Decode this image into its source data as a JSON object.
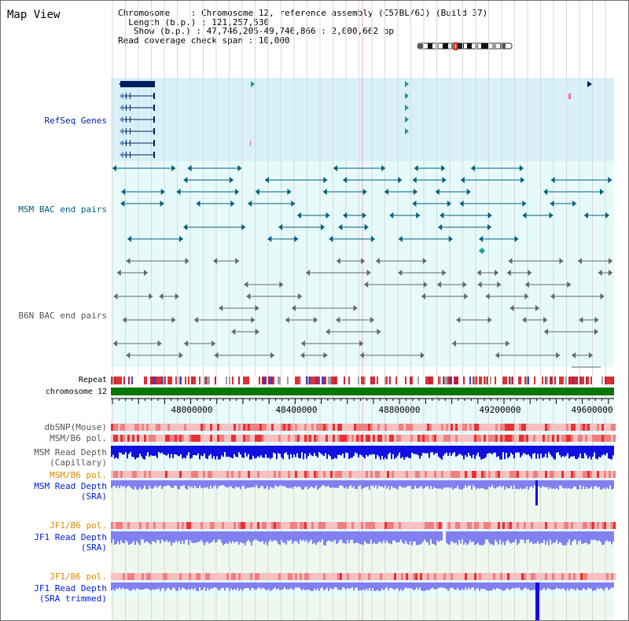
{
  "title": "Map View",
  "info": {
    "chromosome_key": "Chromosome",
    "chromosome_value": "Chromosome 12, reference assembly (C57BL/6J) (Build 37)",
    "length_key": "Length (b.p.)",
    "length_value": "121,257,530",
    "show_key": "Show (b.p.)",
    "show_value": "47,746,205-49,746,866 : 2,000,662 bp",
    "coverage_key": "Read coverage check span",
    "coverage_value": "10,000"
  },
  "tracks": {
    "refseq": "RefSeq Genes",
    "msm_bac": "MSM BAC end pairs",
    "b6n_bac": "B6N BAC end pairs",
    "repeat": "Repeat",
    "chromosome": "chromosome 12",
    "dbsnp": "dbSNP(Mouse)",
    "msm_b6_pol": "MSM/B6 pol.",
    "msm_depth_cap_1": "MSM Read Depth",
    "msm_depth_cap_2": "(Capillary)",
    "msm_b6_pol_2": "MSM/B6 pol.",
    "msm_depth_sra_1": "MSM Read Depth",
    "msm_depth_sra_2": "(SRA)",
    "jf1_b6_pol": "JF1/B6 pol.",
    "jf1_depth_sra_1": "JF1 Read Depth",
    "jf1_depth_sra_2": "(SRA)",
    "jf1_b6_pol_2": "JF1/B6 pol.",
    "jf1_depth_trim_1": "JF1 Read Depth",
    "jf1_depth_trim_2": "(SRA trimmed)"
  },
  "axis": {
    "ticks": [
      "48000000",
      "48400000",
      "48800000",
      "49200000",
      "49600000"
    ]
  },
  "colors": {
    "refseq_bg": "#d8f0fa",
    "bac_bg": "#e6fafa",
    "depth_bg": "#eef8ee",
    "refseq_fg": "#00205f",
    "msm_fg": "#005f7f",
    "b6n_fg": "#555555",
    "chrom": "#007700",
    "depth_dark": "#1010e0",
    "depth_light": "#8080f0",
    "pol_light": "#f8c0c0",
    "pol_dark": "#e83030"
  }
}
